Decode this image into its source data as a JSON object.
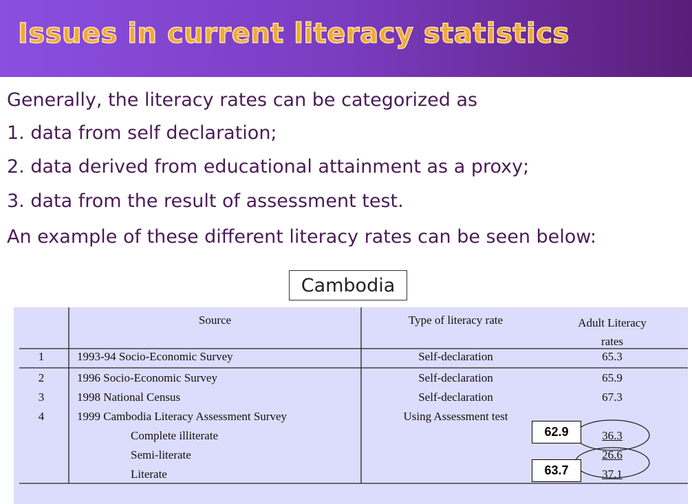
{
  "header": {
    "title": "Issues in current literacy statistics"
  },
  "body": {
    "intro": "Generally, the literacy rates can be categorized as",
    "items": [
      "1. data from self declaration;",
      "2. data derived from educational attainment as a proxy;",
      "3. data from the result of assessment test."
    ],
    "outro": "An example of these different literacy rates can be seen below:"
  },
  "table": {
    "caption": "Cambodia",
    "columns": [
      "Source",
      "Type of literacy rate",
      "Adult Literacy rates"
    ],
    "rows": [
      {
        "number": "1",
        "source": "1993-94 Socio-Economic Survey",
        "type": "Self-declaration",
        "rate": "65.3"
      },
      {
        "number": "2",
        "source": "1996 Socio-Economic Survey",
        "type": "Self-declaration",
        "rate": "65.9"
      },
      {
        "number": "3",
        "source": "1998 National Census",
        "type": "Self-declaration",
        "rate": "67.3"
      },
      {
        "number": "4",
        "source": "1999 Cambodia Literacy Assessment Survey",
        "type": "Using Assessment test"
      }
    ],
    "subrows": [
      {
        "label": "Complete illiterate",
        "rate": "36.3"
      },
      {
        "label": "Semi-literate",
        "rate": "26.6"
      },
      {
        "label": "Literate",
        "rate": "37.1"
      }
    ],
    "annotations": [
      "62.9",
      "63.7"
    ]
  }
}
